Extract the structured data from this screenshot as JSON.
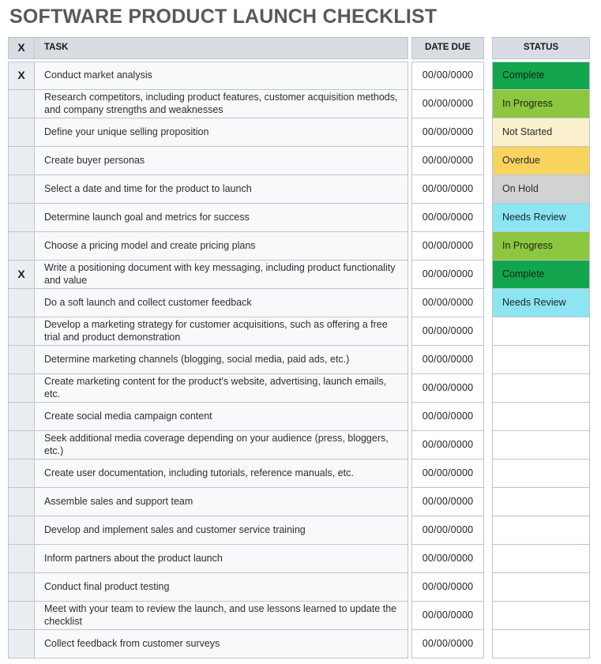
{
  "title": "SOFTWARE PRODUCT LAUNCH CHECKLIST",
  "table": {
    "headers": {
      "check": "X",
      "task": "TASK",
      "date_due": "DATE DUE",
      "status": "STATUS"
    },
    "rows": [
      {
        "check": "X",
        "task": "Conduct market analysis",
        "date_due": "00/00/0000",
        "status": "Complete"
      },
      {
        "check": "",
        "task": "Research competitors, including product features, customer acquisition methods, and company strengths and weaknesses",
        "date_due": "00/00/0000",
        "status": "In Progress"
      },
      {
        "check": "",
        "task": "Define your unique selling proposition",
        "date_due": "00/00/0000",
        "status": "Not Started"
      },
      {
        "check": "",
        "task": "Create buyer personas",
        "date_due": "00/00/0000",
        "status": "Overdue"
      },
      {
        "check": "",
        "task": "Select a date and time for the product to launch",
        "date_due": "00/00/0000",
        "status": "On Hold"
      },
      {
        "check": "",
        "task": "Determine launch goal and metrics for success",
        "date_due": "00/00/0000",
        "status": "Needs Review"
      },
      {
        "check": "",
        "task": "Choose a pricing model and create pricing plans",
        "date_due": "00/00/0000",
        "status": "In Progress"
      },
      {
        "check": "X",
        "task": "Write a positioning document with key messaging, including product functionality and value",
        "date_due": "00/00/0000",
        "status": "Complete"
      },
      {
        "check": "",
        "task": "Do a soft launch and collect customer feedback",
        "date_due": "00/00/0000",
        "status": "Needs Review"
      },
      {
        "check": "",
        "task": "Develop a marketing strategy for customer acquisitions, such as offering a free trial and product demonstration",
        "date_due": "00/00/0000",
        "status": ""
      },
      {
        "check": "",
        "task": "Determine marketing channels (blogging, social media, paid ads, etc.)",
        "date_due": "00/00/0000",
        "status": ""
      },
      {
        "check": "",
        "task": "Create marketing content for the product's website, advertising, launch emails, etc.",
        "date_due": "00/00/0000",
        "status": ""
      },
      {
        "check": "",
        "task": "Create social media campaign content",
        "date_due": "00/00/0000",
        "status": ""
      },
      {
        "check": "",
        "task": "Seek additional media coverage depending on your audience (press, bloggers, etc.)",
        "date_due": "00/00/0000",
        "status": ""
      },
      {
        "check": "",
        "task": "Create user documentation, including tutorials, reference manuals, etc.",
        "date_due": "00/00/0000",
        "status": ""
      },
      {
        "check": "",
        "task": "Assemble sales and support team",
        "date_due": "00/00/0000",
        "status": ""
      },
      {
        "check": "",
        "task": "Develop and implement sales and customer service training",
        "date_due": "00/00/0000",
        "status": ""
      },
      {
        "check": "",
        "task": "Inform partners about the product launch",
        "date_due": "00/00/0000",
        "status": ""
      },
      {
        "check": "",
        "task": "Conduct final product testing",
        "date_due": "00/00/0000",
        "status": ""
      },
      {
        "check": "",
        "task": "Meet with your team to review the launch, and use lessons learned to update the checklist",
        "date_due": "00/00/0000",
        "status": ""
      },
      {
        "check": "",
        "task": "Collect feedback from customer surveys",
        "date_due": "00/00/0000",
        "status": ""
      }
    ]
  },
  "status_colors": {
    "Complete": {
      "bg": "#12a54c",
      "text": "#14241a"
    },
    "In Progress": {
      "bg": "#8dc63f",
      "text": "#1b2512"
    },
    "Not Started": {
      "bg": "#faf0cd",
      "text": "#2b2b2b"
    },
    "Overdue": {
      "bg": "#f8d35e",
      "text": "#2b2b2b"
    },
    "On Hold": {
      "bg": "#d2d2d2",
      "text": "#2b2b2b"
    },
    "Needs Review": {
      "bg": "#8ee5f2",
      "text": "#14262a"
    },
    "": {
      "bg": "#ffffff",
      "text": "#2b2b2b"
    }
  }
}
